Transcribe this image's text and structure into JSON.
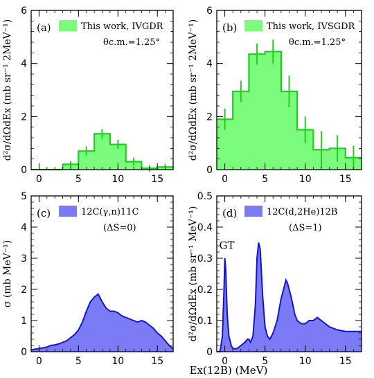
{
  "xlabel_html": "E<tspan font-size='9' dy='-6'>x</tspan>",
  "xlabel": "Ex(12B) (MeV)",
  "chart_data": [
    {
      "id": "a",
      "type": "bar",
      "panel_label": "(a)",
      "legend": "This work, IVGDR",
      "annotation": "θc.m.=1.25°",
      "ylabel": "d²σ/dΩdEx (mb sr⁻¹ 2MeV⁻¹)",
      "xlim": [
        -1,
        17
      ],
      "ylim": [
        0,
        6
      ],
      "xticks": [
        0,
        5,
        10,
        15
      ],
      "yticks": [
        0,
        2,
        4,
        6
      ],
      "color": "#7CFC7C",
      "edge_color": "#1ED01E",
      "bin_edges": [
        -1,
        3,
        5,
        7,
        9,
        11,
        13,
        15,
        17
      ],
      "values": [
        0.0,
        0.2,
        0.7,
        1.35,
        0.95,
        0.3,
        0.05,
        0.1
      ],
      "errors": [
        0.0,
        0.12,
        0.17,
        0.18,
        0.17,
        0.15,
        0.12,
        0.12
      ]
    },
    {
      "id": "b",
      "type": "bar",
      "panel_label": "(b)",
      "legend": "This work, IVSGDR",
      "annotation": "θc.m.=1.25°",
      "ylabel": "d²σ/dΩdEx (mb sr⁻¹ 2MeV⁻¹)",
      "xlim": [
        -1,
        17
      ],
      "ylim": [
        0,
        6
      ],
      "xticks": [
        0,
        5,
        10,
        15
      ],
      "yticks": [
        0,
        2,
        4,
        6
      ],
      "color": "#7CFC7C",
      "edge_color": "#1ED01E",
      "bin_edges": [
        -1,
        1,
        3,
        5,
        7,
        9,
        11,
        13,
        15,
        17
      ],
      "values": [
        1.9,
        2.95,
        4.35,
        4.45,
        2.95,
        1.5,
        0.75,
        0.8,
        0.45
      ],
      "errors": [
        0.4,
        0.4,
        0.4,
        0.45,
        0.6,
        0.5,
        0.7,
        0.5,
        0.45
      ]
    },
    {
      "id": "c",
      "type": "area",
      "panel_label": "(c)",
      "legend": "12C(γ,n)11C",
      "annotation": "(ΔS=0)",
      "ylabel": "σ (mb MeV⁻¹)",
      "xlim": [
        -1,
        17
      ],
      "ylim": [
        0,
        5
      ],
      "xticks": [
        0,
        5,
        10,
        15
      ],
      "yticks": [
        0,
        1,
        2,
        3,
        4,
        5
      ],
      "color": "#7B7BF5",
      "edge_color": "#1414CC",
      "x": [
        -1,
        -0.5,
        0,
        0.5,
        1,
        1.5,
        2,
        2.5,
        3,
        3.5,
        4,
        4.5,
        5,
        5.5,
        6,
        6.5,
        7,
        7.5,
        8,
        8.5,
        9,
        9.5,
        10,
        10.5,
        11,
        11.5,
        12,
        12.5,
        13,
        13.5,
        14,
        14.5,
        15,
        15.5,
        16,
        16.5,
        17
      ],
      "y": [
        0.05,
        0.08,
        0.1,
        0.12,
        0.15,
        0.2,
        0.22,
        0.25,
        0.3,
        0.35,
        0.45,
        0.55,
        0.7,
        0.95,
        1.3,
        1.6,
        1.75,
        1.85,
        1.6,
        1.4,
        1.3,
        1.3,
        1.25,
        1.15,
        1.1,
        1.05,
        1.0,
        0.95,
        1.0,
        0.95,
        0.85,
        0.75,
        0.6,
        0.5,
        0.35,
        0.2,
        0.1
      ]
    },
    {
      "id": "d",
      "type": "area",
      "panel_label": "(d)",
      "legend": "12C(d,2He)12B",
      "annotation": "(ΔS=1)",
      "peak_label": "GT",
      "ylabel": "d²σ/dΩdEx (mb sr⁻¹ MeV⁻¹)",
      "xlim": [
        -1,
        17
      ],
      "ylim": [
        0,
        0.5
      ],
      "xticks": [
        0,
        5,
        10,
        15
      ],
      "yticks": [
        0,
        0.1,
        0.2,
        0.3,
        0.4,
        0.5
      ],
      "color": "#7B7BF5",
      "edge_color": "#1414CC",
      "x": [
        -1,
        -0.6,
        -0.3,
        -0.1,
        0,
        0.1,
        0.3,
        0.5,
        0.8,
        1.0,
        1.5,
        2.0,
        2.5,
        2.8,
        3.0,
        3.2,
        3.5,
        3.8,
        4.0,
        4.2,
        4.4,
        4.5,
        4.7,
        5.0,
        5.3,
        5.6,
        6.0,
        6.5,
        7.0,
        7.3,
        7.6,
        7.8,
        8.0,
        8.3,
        8.7,
        9.0,
        9.5,
        10.0,
        10.5,
        11.0,
        11.5,
        12.0,
        12.5,
        13.0,
        14.0,
        15.0,
        16.0,
        17.0
      ],
      "y": [
        0.0,
        0.0,
        0.05,
        0.2,
        0.3,
        0.27,
        0.12,
        0.05,
        0.02,
        0.01,
        0.01,
        0.02,
        0.03,
        0.04,
        0.04,
        0.03,
        0.05,
        0.15,
        0.3,
        0.35,
        0.33,
        0.28,
        0.18,
        0.08,
        0.05,
        0.04,
        0.06,
        0.1,
        0.17,
        0.2,
        0.23,
        0.22,
        0.2,
        0.17,
        0.12,
        0.1,
        0.09,
        0.09,
        0.1,
        0.1,
        0.11,
        0.1,
        0.09,
        0.08,
        0.07,
        0.065,
        0.065,
        0.065
      ]
    }
  ]
}
